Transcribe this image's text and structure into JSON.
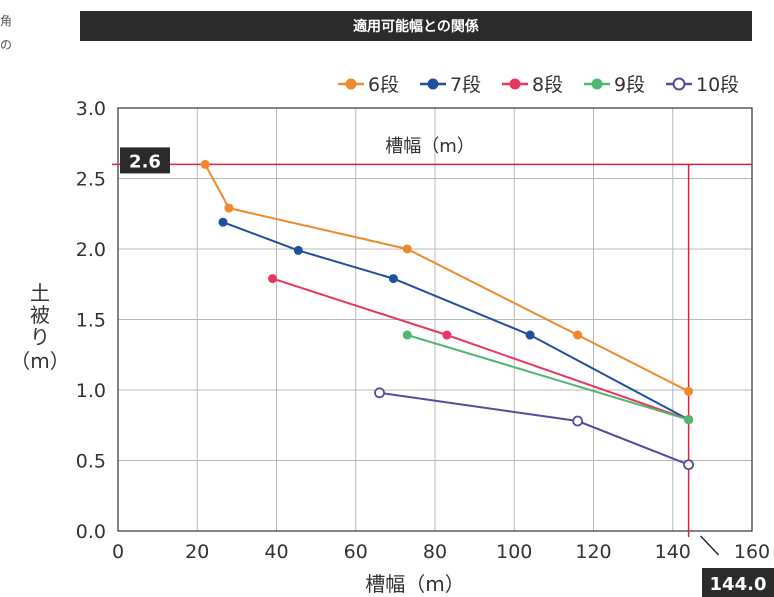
{
  "edge_fragment_1": "角",
  "edge_fragment_2": "の",
  "chart_data": {
    "type": "line",
    "title": "適用可能幅との関係",
    "xlabel": "槽幅（m）",
    "ylabel": "土被り（m）",
    "inner_label": "槽幅（m）",
    "xlim": [
      0,
      160
    ],
    "ylim": [
      0,
      3.0
    ],
    "xticks": [
      "0",
      "20",
      "40",
      "60",
      "80",
      "100",
      "120",
      "140",
      "160"
    ],
    "yticks": [
      "0.0",
      "0.5",
      "1.0",
      "1.5",
      "2.0",
      "2.5",
      "3.0"
    ],
    "grid": true,
    "legend_position": "top-right",
    "series": [
      {
        "name": "6段",
        "color": "#f0892d",
        "hollow": false,
        "x": [
          22,
          28,
          73,
          116,
          144
        ],
        "y": [
          2.6,
          2.29,
          2.0,
          1.39,
          0.99
        ]
      },
      {
        "name": "7段",
        "color": "#1f4f9e",
        "hollow": false,
        "x": [
          26.5,
          45.5,
          69.5,
          104,
          144
        ],
        "y": [
          2.19,
          1.99,
          1.79,
          1.39,
          0.79
        ]
      },
      {
        "name": "8段",
        "color": "#e8375f",
        "hollow": false,
        "x": [
          39,
          83,
          144
        ],
        "y": [
          1.79,
          1.39,
          0.79
        ]
      },
      {
        "name": "9段",
        "color": "#4db86e",
        "hollow": false,
        "x": [
          73,
          144
        ],
        "y": [
          1.39,
          0.79
        ]
      },
      {
        "name": "10段",
        "color": "#5a4a9c",
        "hollow": true,
        "x": [
          66,
          116,
          144
        ],
        "y": [
          0.98,
          0.78,
          0.47
        ]
      }
    ],
    "reference_lines": {
      "y_value": 2.6,
      "y_label": "2.6",
      "x_value": 144.0,
      "x_label": "144.0",
      "color": "#e0203a"
    }
  }
}
